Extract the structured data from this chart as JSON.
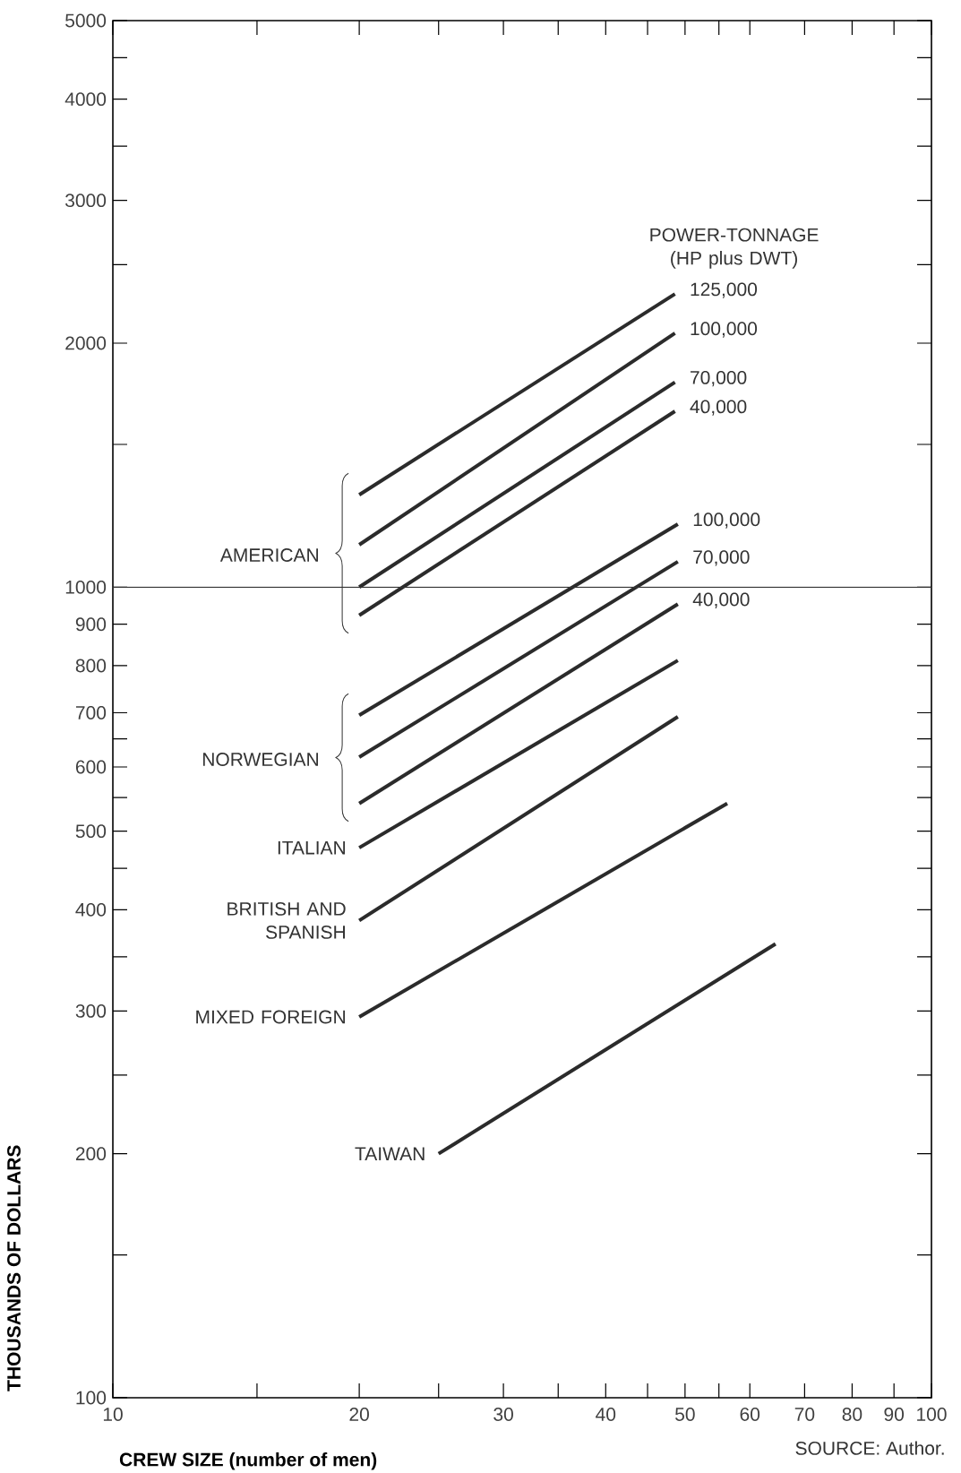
{
  "chart_data": {
    "type": "line",
    "xlabel": "CREW SIZE (number of men)",
    "ylabel": "THOUSANDS OF DOLLARS",
    "legend_title": "POWER-TONNAGE (HP plus DWT)",
    "xlim": [
      10,
      100
    ],
    "ylim": [
      100,
      5000
    ],
    "log": "xy",
    "marker": "none",
    "line_style": "solid",
    "xticks": [
      10,
      {
        "value": 15,
        "label": null
      },
      20,
      {
        "value": 25,
        "label": null
      },
      30,
      {
        "value": 35,
        "label": null
      },
      40,
      {
        "value": 45,
        "label": null
      },
      50,
      {
        "value": 55,
        "label": null
      },
      60,
      70,
      80,
      90,
      100
    ],
    "yticks": [
      100,
      {
        "value": 150,
        "label": null
      },
      200,
      {
        "value": 250,
        "label": null
      },
      300,
      {
        "value": 350,
        "label": null
      },
      400,
      {
        "value": 450,
        "label": null
      },
      500,
      {
        "value": 550,
        "label": null
      },
      600,
      {
        "value": 650,
        "label": null
      },
      700,
      800,
      900,
      1000,
      {
        "value": 1500,
        "label": null
      },
      2000,
      {
        "value": 2500,
        "label": null
      },
      3000,
      {
        "value": 3500,
        "label": null
      },
      4000,
      {
        "value": 4500,
        "label": null
      },
      5000
    ],
    "ref_lines": [
      {
        "axis": "y",
        "value": 1000,
        "color": "#333333"
      }
    ],
    "series": [
      {
        "name": "125,000",
        "color": "#2b2b2b",
        "x": [
          20,
          48.6
        ],
        "values": [
          1300,
          2300
        ]
      },
      {
        "name": "100,000",
        "color": "#2b2b2b",
        "x": [
          20,
          48.6
        ],
        "values": [
          1128,
          2057
        ]
      },
      {
        "name": "70,000",
        "color": "#2b2b2b",
        "x": [
          20,
          48.6
        ],
        "values": [
          1000,
          1790
        ]
      },
      {
        "name": "40,000",
        "color": "#2b2b2b",
        "x": [
          20,
          48.6
        ],
        "values": [
          923,
          1648
        ]
      },
      {
        "name": "100,000",
        "color": "#2b2b2b",
        "x": [
          20,
          49
        ],
        "values": [
          695,
          1196
        ]
      },
      {
        "name": "70,000",
        "color": "#2b2b2b",
        "x": [
          20,
          49
        ],
        "values": [
          617,
          1075
        ]
      },
      {
        "name": "40,000",
        "color": "#2b2b2b",
        "x": [
          20,
          49
        ],
        "values": [
          541,
          953
        ]
      },
      {
        "color": "#2b2b2b",
        "x": [
          20,
          49
        ],
        "values": [
          477,
          812
        ]
      },
      {
        "color": "#2b2b2b",
        "x": [
          20,
          49
        ],
        "values": [
          388,
          692
        ]
      },
      {
        "color": "#2b2b2b",
        "x": [
          20,
          56.3
        ],
        "values": [
          295,
          541
        ]
      },
      {
        "color": "#2b2b2b",
        "x": [
          25,
          64.5
        ],
        "values": [
          200,
          363
        ]
      }
    ],
    "annotations": [
      "AMERICAN",
      "NORWEGIAN",
      "ITALIAN",
      "BRITISH AND SPANISH",
      "MIXED FOREIGN",
      "TAIWAN",
      "SOURCE: Author."
    ]
  }
}
